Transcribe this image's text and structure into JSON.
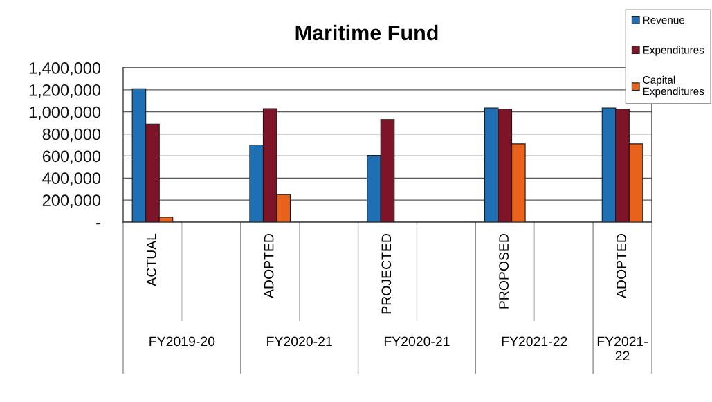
{
  "chart_data": {
    "type": "bar",
    "title": "Maritime Fund",
    "categories": [
      "ACTUAL",
      null,
      "ADOPTED",
      null,
      "PROJECTED",
      null,
      "PROPOSED",
      null,
      "ADOPTED"
    ],
    "annotations": [
      "FY2019-20",
      "FY2020-21",
      "FY2020-21",
      "FY2021-22",
      "FY2021-22"
    ],
    "series": [
      {
        "name": "Revenue",
        "color": "#1f6fb4",
        "values": [
          1210000,
          null,
          700000,
          null,
          605000,
          null,
          1035000,
          null,
          1035000
        ]
      },
      {
        "name": "Expenditures",
        "color": "#7d1428",
        "values": [
          890000,
          null,
          1030000,
          null,
          930000,
          null,
          1025000,
          null,
          1025000
        ]
      },
      {
        "name": "Capital Expenditures",
        "color": "#e8621c",
        "values": [
          45000,
          null,
          250000,
          null,
          null,
          null,
          710000,
          null,
          710000
        ]
      }
    ],
    "ylim": [
      0,
      1400000
    ],
    "yticks": [
      {
        "value": 0,
        "label": "-"
      },
      {
        "value": 200000,
        "label": "200,000"
      },
      {
        "value": 400000,
        "label": "400,000"
      },
      {
        "value": 600000,
        "label": "600,000"
      },
      {
        "value": 800000,
        "label": "800,000"
      },
      {
        "value": 1000000,
        "label": "1,000,000"
      },
      {
        "value": 1200000,
        "label": "1,200,000"
      },
      {
        "value": 1400000,
        "label": "1,400,000"
      }
    ],
    "grid": "y",
    "legend": "top right"
  }
}
